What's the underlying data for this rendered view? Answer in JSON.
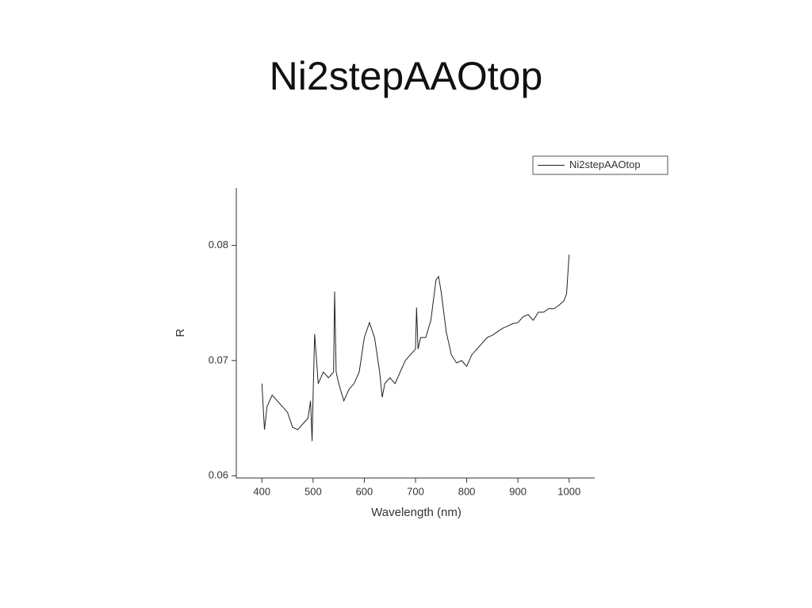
{
  "chart_data": {
    "type": "line",
    "title": "Ni2stepAAOtop",
    "x_label": "Wavelength (nm)",
    "y_label": "R",
    "x": [
      400,
      405,
      410,
      420,
      430,
      440,
      450,
      460,
      470,
      480,
      490,
      495,
      498,
      500,
      503,
      510,
      520,
      530,
      540,
      542,
      545,
      550,
      560,
      570,
      580,
      590,
      600,
      610,
      620,
      630,
      635,
      640,
      650,
      660,
      670,
      680,
      690,
      700,
      702,
      705,
      710,
      720,
      730,
      740,
      745,
      750,
      760,
      770,
      780,
      790,
      800,
      810,
      820,
      830,
      840,
      850,
      860,
      870,
      880,
      890,
      900,
      910,
      920,
      930,
      940,
      950,
      960,
      970,
      980,
      990,
      995,
      1000
    ],
    "series": [
      {
        "name": "Ni2stepAAOtop",
        "color": "#222222",
        "values": [
          0.068,
          0.064,
          0.066,
          0.067,
          0.0665,
          0.066,
          0.0655,
          0.0642,
          0.064,
          0.0645,
          0.065,
          0.0665,
          0.063,
          0.067,
          0.0723,
          0.068,
          0.069,
          0.0685,
          0.069,
          0.076,
          0.069,
          0.068,
          0.0665,
          0.0675,
          0.068,
          0.069,
          0.072,
          0.0733,
          0.072,
          0.069,
          0.0668,
          0.068,
          0.0685,
          0.068,
          0.069,
          0.07,
          0.0705,
          0.071,
          0.0746,
          0.071,
          0.072,
          0.072,
          0.0735,
          0.077,
          0.0773,
          0.076,
          0.0725,
          0.0705,
          0.0698,
          0.07,
          0.0695,
          0.0705,
          0.071,
          0.0715,
          0.072,
          0.0722,
          0.0725,
          0.0728,
          0.073,
          0.0732,
          0.0733,
          0.0738,
          0.074,
          0.0735,
          0.0742,
          0.0742,
          0.0745,
          0.0745,
          0.0748,
          0.0752,
          0.0758,
          0.0792
        ]
      }
    ],
    "xlim": [
      350,
      1050
    ],
    "xticks": [
      400,
      500,
      600,
      700,
      800,
      900,
      1000
    ],
    "ylim": [
      0.0598,
      0.085
    ],
    "yticks": [
      0.06,
      0.07,
      0.08
    ],
    "legend": "top-right"
  }
}
